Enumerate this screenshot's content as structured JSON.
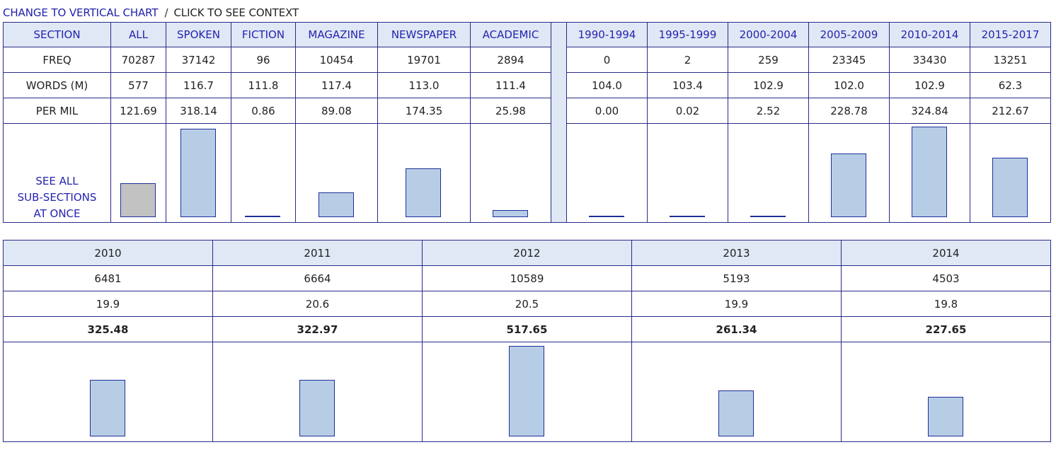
{
  "topbar": {
    "vertical_link": "CHANGE TO VERTICAL CHART",
    "separator": "/",
    "context_label": "CLICK TO SEE CONTEXT"
  },
  "sections_table": {
    "label_header": "SECTION",
    "row_labels": {
      "freq": "FREQ",
      "words": "WORDS (M)",
      "per_mil": "PER MIL"
    },
    "see_all": [
      "SEE ALL",
      "SUB-SECTIONS",
      "AT ONCE"
    ],
    "columns_left": [
      {
        "name": "ALL",
        "freq": "70287",
        "words": "577",
        "per_mil": "121.69",
        "bar_value": 121.69,
        "highlight": true
      },
      {
        "name": "SPOKEN",
        "freq": "37142",
        "words": "116.7",
        "per_mil": "318.14",
        "bar_value": 318.14
      },
      {
        "name": "FICTION",
        "freq": "96",
        "words": "111.8",
        "per_mil": "0.86",
        "bar_value": 0.86
      },
      {
        "name": "MAGAZINE",
        "freq": "10454",
        "words": "117.4",
        "per_mil": "89.08",
        "bar_value": 89.08
      },
      {
        "name": "NEWSPAPER",
        "freq": "19701",
        "words": "113.0",
        "per_mil": "174.35",
        "bar_value": 174.35
      },
      {
        "name": "ACADEMIC",
        "freq": "2894",
        "words": "111.4",
        "per_mil": "25.98",
        "bar_value": 25.98
      }
    ],
    "columns_right": [
      {
        "name": "1990-1994",
        "freq": "0",
        "words": "104.0",
        "per_mil": "0.00",
        "bar_value": 0.0
      },
      {
        "name": "1995-1999",
        "freq": "2",
        "words": "103.4",
        "per_mil": "0.02",
        "bar_value": 0.02
      },
      {
        "name": "2000-2004",
        "freq": "259",
        "words": "102.9",
        "per_mil": "2.52",
        "bar_value": 2.52
      },
      {
        "name": "2005-2009",
        "freq": "23345",
        "words": "102.0",
        "per_mil": "228.78",
        "bar_value": 228.78
      },
      {
        "name": "2010-2014",
        "freq": "33430",
        "words": "102.9",
        "per_mil": "324.84",
        "bar_value": 324.84
      },
      {
        "name": "2015-2017",
        "freq": "13251",
        "words": "62.3",
        "per_mil": "212.67",
        "bar_value": 212.67
      }
    ],
    "bar_max": 324.84,
    "colors": {
      "bar": "#b7cde6",
      "bar_highlight": "#c2c2c2",
      "divider": "#5b8fcf",
      "header_bg": "#dfe8f4",
      "link": "#2424b0"
    }
  },
  "years_table": {
    "columns": [
      {
        "year": "2010",
        "freq": "6481",
        "words": "19.9",
        "per_mil": "325.48",
        "bar_value": 325.48
      },
      {
        "year": "2011",
        "freq": "6664",
        "words": "20.6",
        "per_mil": "322.97",
        "bar_value": 322.97
      },
      {
        "year": "2012",
        "freq": "10589",
        "words": "20.5",
        "per_mil": "517.65",
        "bar_value": 517.65
      },
      {
        "year": "2013",
        "freq": "5193",
        "words": "19.9",
        "per_mil": "261.34",
        "bar_value": 261.34
      },
      {
        "year": "2014",
        "freq": "4503",
        "words": "19.8",
        "per_mil": "227.65",
        "bar_value": 227.65
      }
    ],
    "bar_max": 517.65
  }
}
